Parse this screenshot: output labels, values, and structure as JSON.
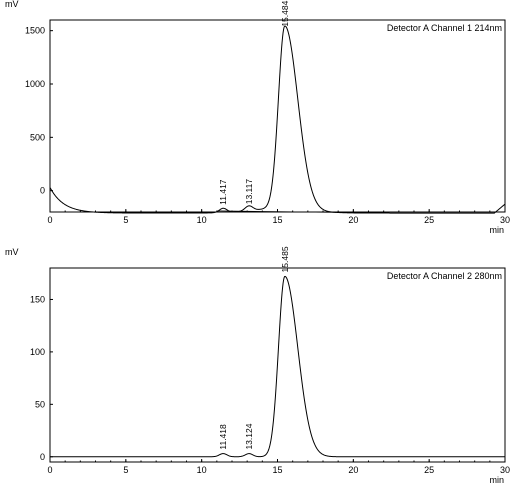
{
  "chart_data": [
    {
      "type": "line",
      "title": "Detector A Channel 1 214nm",
      "ylabel": "mV",
      "xlabel": "min",
      "xlim": [
        0,
        30
      ],
      "ylim": [
        -200,
        1600
      ],
      "xticks": [
        "0",
        "5",
        "10",
        "15",
        "20",
        "25",
        "30"
      ],
      "yticks": [
        "0",
        "500",
        "1000",
        "1500"
      ],
      "baseline_level": -210,
      "peaks": [
        {
          "label": "11.417",
          "rt": 11.417,
          "height": -170
        },
        {
          "label": "13.117",
          "rt": 13.117,
          "height": -165
        },
        {
          "label": "15.484",
          "rt": 15.484,
          "height": 1500
        }
      ]
    },
    {
      "type": "line",
      "title": "Detector A Channel 2 280nm",
      "ylabel": "mV",
      "xlabel": "min",
      "xlim": [
        0,
        30
      ],
      "ylim": [
        -5,
        180
      ],
      "xticks": [
        "0",
        "5",
        "10",
        "15",
        "20",
        "25",
        "30"
      ],
      "yticks": [
        "0",
        "50",
        "100",
        "150"
      ],
      "baseline_level": 0,
      "peaks": [
        {
          "label": "11.418",
          "rt": 11.418,
          "height": 3
        },
        {
          "label": "13.124",
          "rt": 13.124,
          "height": 3
        },
        {
          "label": "15.485",
          "rt": 15.485,
          "height": 172
        }
      ]
    }
  ]
}
